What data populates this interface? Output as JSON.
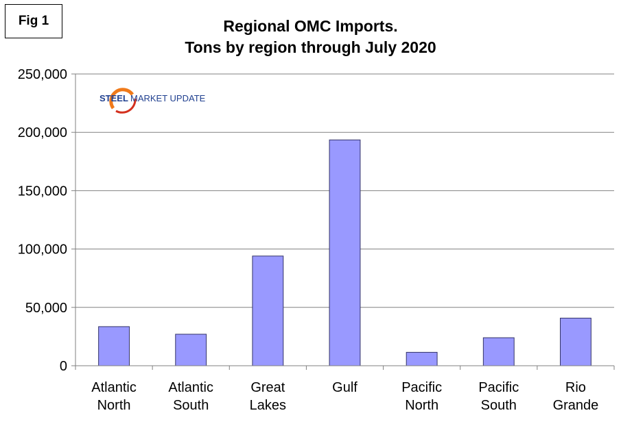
{
  "fig_label": "Fig 1",
  "logo": {
    "word1": "STEEL",
    "word2": "MARKET UPDATE",
    "colors": {
      "arc_orange": "#f07a1a",
      "arc_red": "#d4301e",
      "text_blue": "#1f3f8f"
    }
  },
  "chart_data": {
    "type": "bar",
    "title": "Regional OMC Imports.",
    "subtitle": "Tons by region through July 2020",
    "xlabel": "",
    "ylabel": "",
    "categories": [
      [
        "Atlantic",
        "North"
      ],
      [
        "Atlantic",
        "South"
      ],
      [
        "Great",
        "Lakes"
      ],
      [
        "Gulf"
      ],
      [
        "Pacific",
        "North"
      ],
      [
        "Pacific",
        "South"
      ],
      [
        "Rio",
        "Grande"
      ]
    ],
    "values": [
      33500,
      27000,
      94000,
      193500,
      11500,
      24000,
      40800
    ],
    "ylim": [
      0,
      250000
    ],
    "yticks": [
      0,
      50000,
      100000,
      150000,
      200000,
      250000
    ],
    "ytick_labels": [
      "0",
      "50,000",
      "100,000",
      "150,000",
      "200,000",
      "250,000"
    ],
    "grid": true,
    "legend": "none",
    "colors": {
      "bar_fill": "#9999ff",
      "bar_stroke": "#333366",
      "grid": "#808080",
      "axis": "#808080"
    }
  }
}
